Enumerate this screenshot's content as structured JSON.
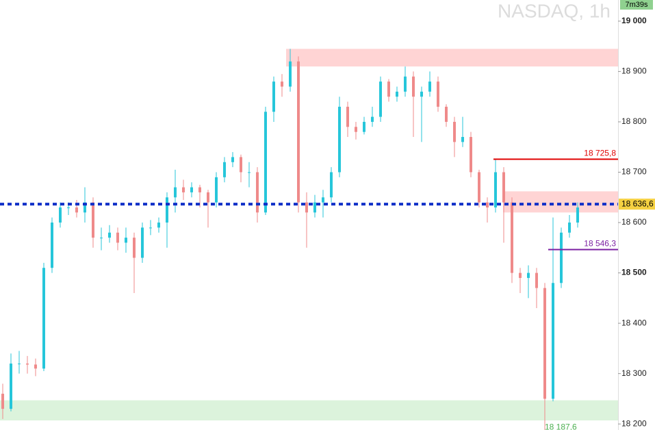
{
  "chart_data": {
    "type": "candlestick",
    "title": "NASDAQ, 1h",
    "timer": "7m39s",
    "ylim": [
      18188,
      19042
    ],
    "yticks": [
      {
        "value": 18200,
        "label": "18 200"
      },
      {
        "value": 18300,
        "label": "18 300"
      },
      {
        "value": 18400,
        "label": "18 400"
      },
      {
        "value": 18500,
        "label": "18 500"
      },
      {
        "value": 18600,
        "label": "18 600"
      },
      {
        "value": 18700,
        "label": "18 700"
      },
      {
        "value": 18800,
        "label": "18 800"
      },
      {
        "value": 18900,
        "label": "18 900"
      },
      {
        "value": 19000,
        "label": "19 000"
      }
    ],
    "up_color": "#26c6da",
    "down_color": "#ef8a8a",
    "open": [
      18260,
      18230,
      18320,
      18320,
      18318,
      18310,
      18510,
      18600,
      18630,
      18630,
      18620,
      18640,
      18570,
      18570,
      18580,
      18560,
      18570,
      18530,
      18590,
      18590,
      18600,
      18650,
      18670,
      18660,
      18670,
      18660,
      18640,
      18690,
      18720,
      18730,
      18700,
      18700,
      18620,
      18820,
      18880,
      18870,
      18920,
      18640,
      18620,
      18640,
      18650,
      18700,
      18830,
      18790,
      18780,
      18800,
      18810,
      18880,
      18850,
      18860,
      18890,
      18850,
      18860,
      18880,
      18830,
      18800,
      18760,
      18770,
      18700,
      18640,
      18630,
      18700,
      18640,
      18500,
      18490,
      18500,
      18470,
      18250,
      18480,
      18580,
      18600
    ],
    "high": [
      18280,
      18340,
      18345,
      18335,
      18330,
      18520,
      18610,
      18640,
      18640,
      18645,
      18670,
      18650,
      18590,
      18595,
      18590,
      18590,
      18580,
      18600,
      18605,
      18610,
      18660,
      18705,
      18685,
      18680,
      18675,
      18665,
      18700,
      18730,
      18740,
      18735,
      18720,
      18710,
      18830,
      18890,
      18895,
      18945,
      18930,
      18660,
      18655,
      18665,
      18710,
      18850,
      18840,
      18800,
      18810,
      18830,
      18890,
      18885,
      18870,
      18910,
      18900,
      18870,
      18900,
      18890,
      18835,
      18810,
      18810,
      18780,
      18705,
      18650,
      18726,
      18710,
      18650,
      18510,
      18515,
      18510,
      18480,
      18610,
      18590,
      18615,
      18640
    ],
    "low": [
      18210,
      18225,
      18300,
      18300,
      18295,
      18305,
      18500,
      18590,
      18615,
      18610,
      18600,
      18550,
      18545,
      18560,
      18545,
      18540,
      18460,
      18520,
      18575,
      18580,
      18550,
      18620,
      18645,
      18650,
      18630,
      18590,
      18630,
      18680,
      18710,
      18680,
      18670,
      18600,
      18615,
      18800,
      18850,
      18860,
      18620,
      18550,
      18610,
      18610,
      18640,
      18690,
      18770,
      18765,
      18775,
      18790,
      18800,
      18840,
      18840,
      18850,
      18770,
      18760,
      18850,
      18820,
      18790,
      18730,
      18750,
      18690,
      18630,
      18600,
      18620,
      18560,
      18480,
      18460,
      18450,
      18430,
      18187.6,
      18245,
      18470,
      18570,
      18590
    ],
    "close": [
      18230,
      18320,
      18320,
      18318,
      18310,
      18510,
      18600,
      18630,
      18630,
      18620,
      18640,
      18570,
      18570,
      18580,
      18560,
      18570,
      18530,
      18590,
      18590,
      18600,
      18650,
      18670,
      18660,
      18670,
      18660,
      18640,
      18690,
      18720,
      18730,
      18700,
      18700,
      18620,
      18820,
      18880,
      18870,
      18920,
      18640,
      18620,
      18640,
      18650,
      18700,
      18830,
      18790,
      18780,
      18800,
      18810,
      18880,
      18850,
      18860,
      18890,
      18850,
      18860,
      18880,
      18830,
      18800,
      18760,
      18770,
      18700,
      18640,
      18630,
      18700,
      18640,
      18500,
      18490,
      18500,
      18470,
      18250,
      18480,
      18580,
      18600,
      18630
    ],
    "zones": [
      {
        "range": [
          18910,
          18945
        ],
        "color": "#ffd4d4"
      },
      {
        "range": [
          18620,
          18662
        ],
        "color": "#ffd4d4"
      },
      {
        "range": [
          18207,
          18247
        ],
        "color": "#dcf3dc"
      }
    ],
    "levels": [
      {
        "value": 18725.8,
        "label": "18 725,8",
        "color": "#e00000"
      },
      {
        "value": 18546.3,
        "label": "18 546,3",
        "color": "#7b1fa2"
      }
    ],
    "current": {
      "value": 18636.6,
      "label": "18 636,6",
      "color": "#1030c8"
    },
    "low_label": {
      "value": 18187.6,
      "label": "18 187,6",
      "color": "#4caf50"
    }
  }
}
